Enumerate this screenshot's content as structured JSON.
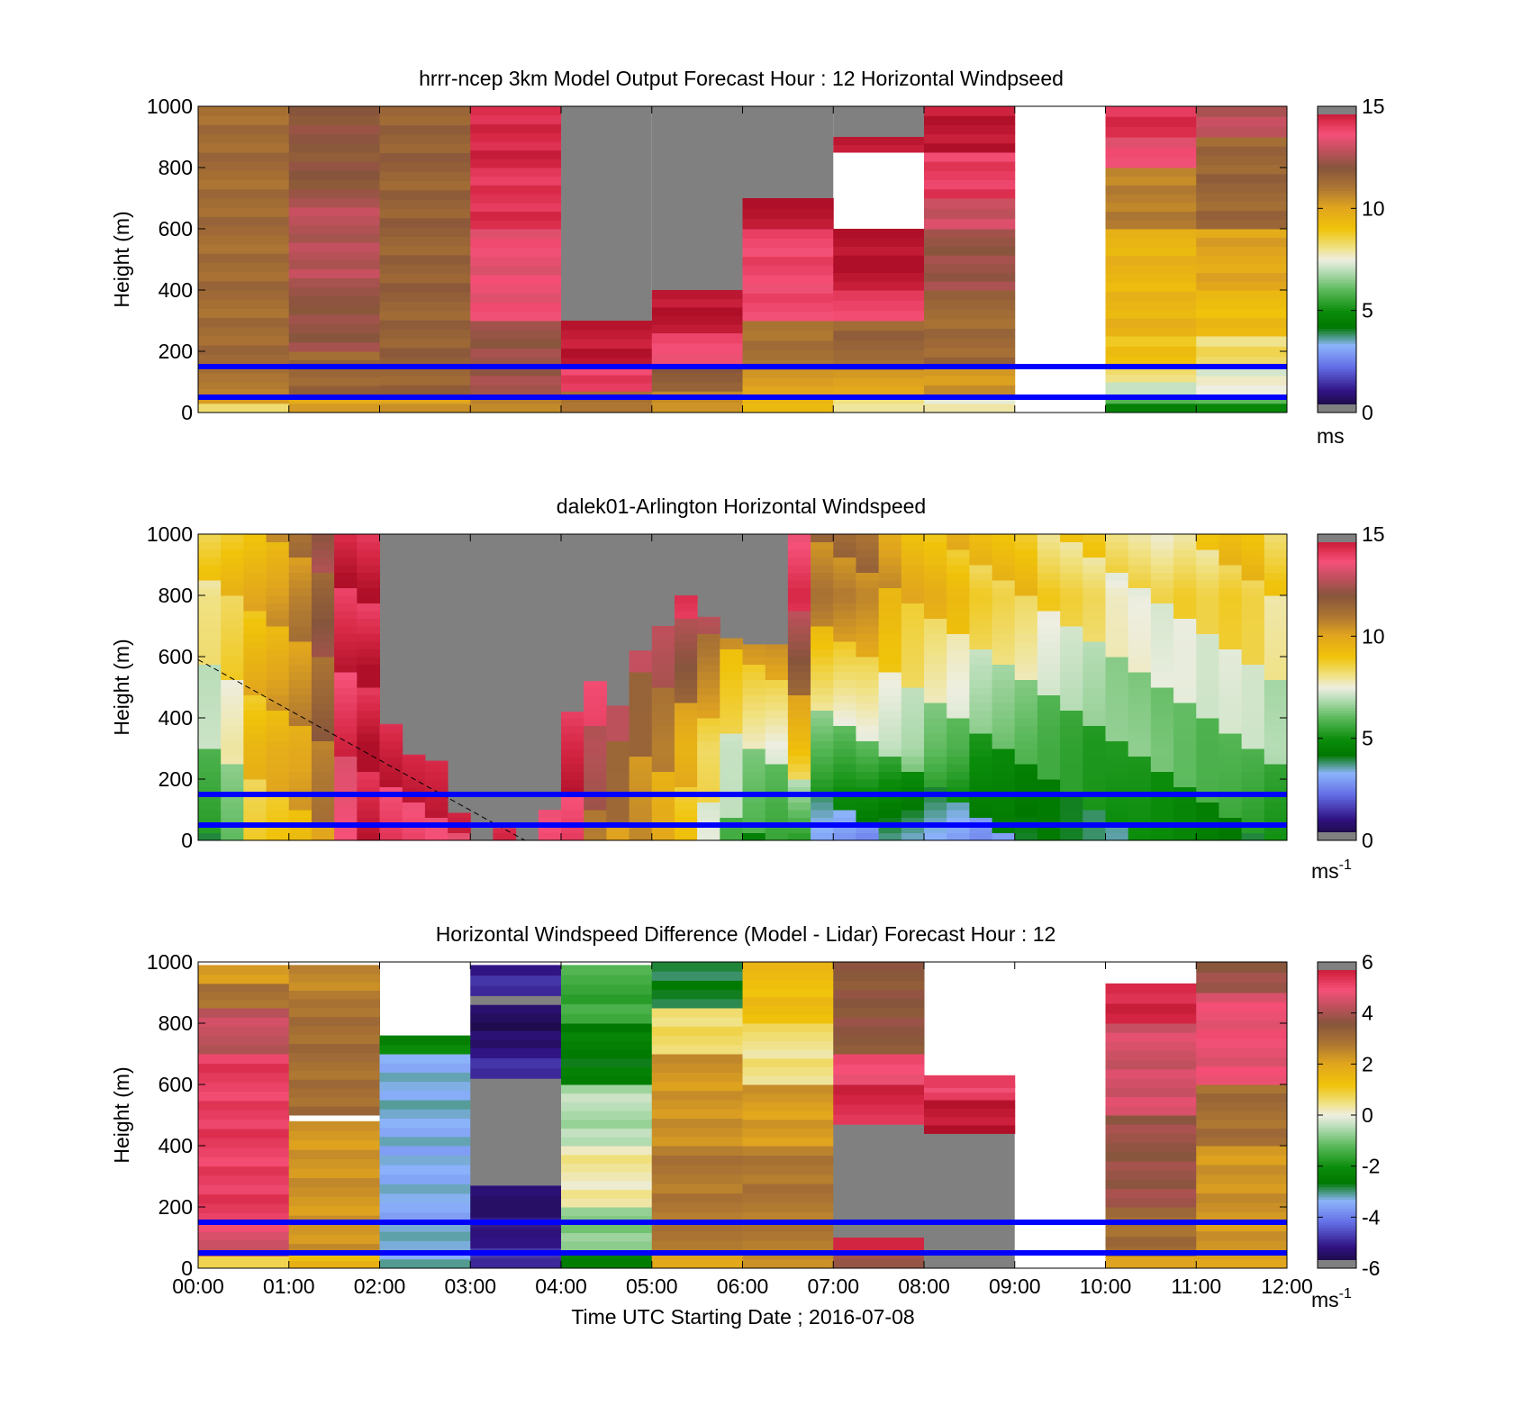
{
  "figure": {
    "xlabel": "Time UTC  Starting Date ; 2016-07-08",
    "x_ticks": [
      "00:00",
      "01:00",
      "02:00",
      "03:00",
      "04:00",
      "05:00",
      "06:00",
      "07:00",
      "08:00",
      "09:00",
      "10:00",
      "11:00",
      "12:00"
    ]
  },
  "chart_data": [
    {
      "type": "heatmap",
      "title": "hrrr-ncep 3km Model Output   Forecast Hour : 12 Horizontal Windpseed",
      "ylabel": "Height (m)",
      "ylim": [
        0,
        1000
      ],
      "y_ticks": [
        0,
        200,
        400,
        600,
        800,
        1000
      ],
      "colorbar": {
        "ticks": [
          0,
          5,
          10,
          15
        ],
        "label": "ms",
        "range": [
          0,
          15
        ]
      },
      "hlines": [
        50,
        150
      ],
      "x_hours": [
        0,
        1,
        2,
        3,
        4,
        5,
        6,
        7,
        8,
        9,
        10,
        11,
        12
      ],
      "columns": [
        {
          "hour": 0,
          "segments": [
            [
              0,
              30,
              8.5
            ],
            [
              30,
              55,
              10.5
            ],
            [
              55,
              100,
              11
            ],
            [
              100,
              1000,
              11.3
            ]
          ]
        },
        {
          "hour": 1,
          "segments": [
            [
              0,
              60,
              10
            ],
            [
              60,
              200,
              11.5
            ],
            [
              200,
              440,
              12.2
            ],
            [
              440,
              700,
              12.7
            ],
            [
              700,
              1000,
              12
            ]
          ]
        },
        {
          "hour": 2,
          "segments": [
            [
              0,
              60,
              10.3
            ],
            [
              60,
              1000,
              11.6
            ]
          ]
        },
        {
          "hour": 3,
          "segments": [
            [
              0,
              60,
              10.5
            ],
            [
              60,
              300,
              12.3
            ],
            [
              300,
              600,
              13.5
            ],
            [
              600,
              800,
              14.2
            ],
            [
              800,
              1000,
              14.4
            ]
          ]
        },
        {
          "hour": 4,
          "segments": [
            [
              0,
              70,
              11
            ],
            [
              70,
              150,
              14
            ],
            [
              150,
              300,
              14.8
            ]
          ]
        },
        {
          "hour": 5,
          "segments": [
            [
              0,
              70,
              10.5
            ],
            [
              70,
              160,
              11.7
            ],
            [
              160,
              260,
              13.6
            ],
            [
              260,
              400,
              14.8
            ]
          ]
        },
        {
          "hour": 6,
          "segments": [
            [
              0,
              60,
              9.5
            ],
            [
              60,
              140,
              10.2
            ],
            [
              140,
              300,
              11.2
            ],
            [
              300,
              600,
              13.8
            ],
            [
              600,
              700,
              14.9
            ]
          ]
        },
        {
          "hour": 7,
          "segments": [
            [
              0,
              60,
              8.2
            ],
            [
              60,
              140,
              10.2
            ],
            [
              140,
              300,
              11.5
            ],
            [
              300,
              400,
              14
            ],
            [
              400,
              600,
              14.9
            ],
            [
              850,
              900,
              14.9
            ]
          ]
        },
        {
          "hour": 8,
          "segments": [
            [
              0,
              60,
              7.6
            ],
            [
              60,
              150,
              10.3
            ],
            [
              150,
              400,
              11.4
            ],
            [
              400,
              600,
              12.3
            ],
            [
              600,
              700,
              13
            ],
            [
              700,
              850,
              14
            ],
            [
              850,
              1000,
              14.8
            ]
          ]
        },
        {
          "hour": 10,
          "segments": [
            [
              0,
              30,
              4.5
            ],
            [
              30,
              60,
              5.8
            ],
            [
              60,
              100,
              7
            ],
            [
              100,
              150,
              8
            ],
            [
              150,
              250,
              9
            ],
            [
              250,
              600,
              9.5
            ],
            [
              600,
              800,
              10.8
            ],
            [
              800,
              900,
              13.5
            ],
            [
              900,
              1000,
              14.2
            ]
          ]
        },
        {
          "hour": 11,
          "segments": [
            [
              0,
              30,
              4.8
            ],
            [
              30,
              60,
              6
            ],
            [
              60,
              150,
              7.5
            ],
            [
              150,
              250,
              8.3
            ],
            [
              250,
              400,
              9.3
            ],
            [
              400,
              600,
              10
            ],
            [
              600,
              900,
              11.5
            ],
            [
              900,
              1000,
              12.8
            ]
          ]
        }
      ],
      "missing_color": "#808080"
    },
    {
      "type": "heatmap",
      "title": "dalek01-Arlington  Horizontal Windspeed",
      "ylabel": "Height (m)",
      "ylim": [
        0,
        1000
      ],
      "y_ticks": [
        0,
        200,
        400,
        600,
        800,
        1000
      ],
      "colorbar": {
        "ticks": [
          0,
          5,
          10,
          15
        ],
        "label": "ms",
        "label_sup": "-1",
        "range": [
          0,
          15
        ]
      },
      "hlines": [
        50,
        150
      ],
      "dashed_line": [
        [
          0,
          590
        ],
        [
          3.6,
          0
        ]
      ],
      "time_step_hours": 0.25,
      "missing_color": "#808080",
      "columns": [
        {
          "t": 0.0,
          "top": 1000,
          "low": 4.5,
          "mid": 6.5,
          "high": 8.5
        },
        {
          "t": 0.25,
          "top": 1000,
          "low": 5.5,
          "mid": 7.5,
          "high": 9
        },
        {
          "t": 0.5,
          "top": 1000,
          "low": 8.5,
          "mid": 9.3,
          "high": 9.5
        },
        {
          "t": 0.75,
          "top": 1000,
          "low": 9,
          "mid": 9.8,
          "high": 10
        },
        {
          "t": 1.0,
          "top": 1000,
          "low": 9.5,
          "mid": 10.2,
          "high": 10.8
        },
        {
          "t": 1.25,
          "top": 1000,
          "low": 10.5,
          "mid": 11.3,
          "high": 12
        },
        {
          "t": 1.5,
          "top": 1000,
          "low": 13,
          "mid": 14,
          "high": 14.5
        },
        {
          "t": 1.75,
          "top": 1000,
          "low": 14.5,
          "mid": 14.8,
          "high": 14.5
        },
        {
          "t": 2.0,
          "top": 380,
          "low": 14,
          "mid": 14.5,
          "high": 14.8
        },
        {
          "t": 2.25,
          "top": 280,
          "low": 14,
          "mid": 14.5,
          "high": 14.8
        },
        {
          "t": 2.5,
          "top": 260,
          "low": 14,
          "mid": 14.7,
          "high": 14.9
        },
        {
          "t": 2.75,
          "top": 90,
          "low": 14,
          "mid": 14.5,
          "high": 14.9
        },
        {
          "t": 3.25,
          "top": 40,
          "low": 14,
          "mid": 14,
          "high": 14
        },
        {
          "t": 3.75,
          "top": 100,
          "low": 13.5,
          "mid": 14,
          "high": 14
        },
        {
          "t": 4.0,
          "top": 420,
          "low": 14,
          "mid": 14.5,
          "high": 14.9
        },
        {
          "t": 4.25,
          "top": 520,
          "low": 11,
          "mid": 13,
          "high": 14.7
        },
        {
          "t": 4.5,
          "top": 440,
          "low": 10.5,
          "mid": 12,
          "high": 14.5
        },
        {
          "t": 4.75,
          "top": 620,
          "low": 10,
          "mid": 11,
          "high": 13.5
        },
        {
          "t": 5.0,
          "top": 700,
          "low": 9.5,
          "mid": 10.5,
          "high": 13.8
        },
        {
          "t": 5.25,
          "top": 800,
          "low": 9,
          "mid": 9.5,
          "high": 14
        },
        {
          "t": 5.5,
          "top": 730,
          "low": 7.5,
          "mid": 8.5,
          "high": 13
        },
        {
          "t": 5.75,
          "top": 660,
          "low": 6,
          "mid": 7.5,
          "high": 11
        },
        {
          "t": 6.0,
          "top": 640,
          "low": 5,
          "mid": 7,
          "high": 11.5
        },
        {
          "t": 6.25,
          "top": 640,
          "low": 5,
          "mid": 7,
          "high": 12
        },
        {
          "t": 6.5,
          "top": 1000,
          "low": 5,
          "mid": 9,
          "high": 14
        },
        {
          "t": 6.75,
          "top": 1000,
          "low": 3,
          "mid": 6,
          "high": 11
        },
        {
          "t": 7.0,
          "top": 1000,
          "low": 3,
          "mid": 6,
          "high": 11
        },
        {
          "t": 7.25,
          "top": 1000,
          "low": 3,
          "mid": 6.5,
          "high": 11
        },
        {
          "t": 7.5,
          "top": 1000,
          "low": 3,
          "mid": 6.5,
          "high": 10
        },
        {
          "t": 7.75,
          "top": 1000,
          "low": 3,
          "mid": 6.5,
          "high": 9.5
        },
        {
          "t": 8.0,
          "top": 1000,
          "low": 3,
          "mid": 6,
          "high": 9.5
        },
        {
          "t": 8.25,
          "top": 1000,
          "low": 3,
          "mid": 6,
          "high": 9.3
        },
        {
          "t": 8.5,
          "top": 1000,
          "low": 3,
          "mid": 5.5,
          "high": 9
        },
        {
          "t": 8.75,
          "top": 1000,
          "low": 3.5,
          "mid": 5.5,
          "high": 9
        },
        {
          "t": 9.0,
          "top": 1000,
          "low": 3.5,
          "mid": 5.5,
          "high": 9
        },
        {
          "t": 9.25,
          "top": 1000,
          "low": 4,
          "mid": 5.5,
          "high": 8.5
        },
        {
          "t": 9.5,
          "top": 1000,
          "low": 4,
          "mid": 5.5,
          "high": 8.5
        },
        {
          "t": 9.75,
          "top": 1000,
          "low": 4,
          "mid": 5.5,
          "high": 8.5
        },
        {
          "t": 10.0,
          "top": 1000,
          "low": 4,
          "mid": 5.8,
          "high": 8
        },
        {
          "t": 10.25,
          "top": 1000,
          "low": 4.3,
          "mid": 6,
          "high": 8
        },
        {
          "t": 10.5,
          "top": 1000,
          "low": 4.5,
          "mid": 6,
          "high": 8
        },
        {
          "t": 10.75,
          "top": 1000,
          "low": 4.5,
          "mid": 6,
          "high": 8.5
        },
        {
          "t": 11.0,
          "top": 1000,
          "low": 4.5,
          "mid": 6,
          "high": 8.5
        },
        {
          "t": 11.25,
          "top": 1000,
          "low": 4.5,
          "mid": 6.3,
          "high": 9
        },
        {
          "t": 11.5,
          "top": 1000,
          "low": 4.5,
          "mid": 6.5,
          "high": 9
        },
        {
          "t": 11.75,
          "top": 1000,
          "low": 4.5,
          "mid": 6.5,
          "high": 8.5
        }
      ]
    },
    {
      "type": "heatmap",
      "title": "Horizontal Windspeed Difference (Model - Lidar) Forecast Hour : 12",
      "ylabel": "Height (m)",
      "ylim": [
        0,
        1000
      ],
      "y_ticks": [
        0,
        200,
        400,
        600,
        800,
        1000
      ],
      "colorbar": {
        "ticks": [
          -6,
          -4,
          -2,
          0,
          2,
          4,
          6
        ],
        "label": "ms",
        "label_sup": "-1",
        "range": [
          -6,
          6
        ]
      },
      "hlines": [
        50,
        150
      ],
      "missing_color": "#808080",
      "columns": [
        {
          "hour": 0,
          "segments": [
            [
              0,
              40,
              1
            ],
            [
              40,
              120,
              4.5
            ],
            [
              120,
              700,
              5.2
            ],
            [
              700,
              850,
              4.3
            ],
            [
              850,
              930,
              3
            ],
            [
              930,
              990,
              2.3
            ]
          ]
        },
        {
          "hour": 1,
          "segments": [
            [
              0,
              50,
              1.5
            ],
            [
              50,
              480,
              2.3
            ],
            [
              500,
              880,
              3
            ],
            [
              880,
              990,
              2.5
            ]
          ]
        },
        {
          "hour": 2,
          "segments": [
            [
              0,
              120,
              -3.2
            ],
            [
              120,
              400,
              -3.4
            ],
            [
              400,
              700,
              -3.3
            ],
            [
              700,
              760,
              -2.2
            ]
          ]
        },
        {
          "hour": 3,
          "segments": [
            [
              0,
              100,
              -5
            ],
            [
              100,
              200,
              -5.3
            ],
            [
              200,
              270,
              -5.5
            ],
            [
              620,
              720,
              -5
            ],
            [
              720,
              860,
              -5.5
            ],
            [
              890,
              990,
              -5
            ]
          ]
        },
        {
          "hour": 4,
          "segments": [
            [
              0,
              60,
              -2.5
            ],
            [
              60,
              200,
              -0.8
            ],
            [
              200,
              400,
              0.3
            ],
            [
              400,
              600,
              -0.5
            ],
            [
              600,
              800,
              -2.5
            ],
            [
              800,
              990,
              -1.5
            ]
          ]
        },
        {
          "hour": 5,
          "segments": [
            [
              0,
              60,
              2
            ],
            [
              60,
              400,
              2.8
            ],
            [
              400,
              700,
              2.3
            ],
            [
              700,
              850,
              0.6
            ],
            [
              850,
              1000,
              -2.8
            ]
          ]
        },
        {
          "hour": 6,
          "segments": [
            [
              0,
              60,
              2.5
            ],
            [
              60,
              400,
              2.8
            ],
            [
              400,
              600,
              2.2
            ],
            [
              600,
              800,
              0.5
            ],
            [
              800,
              1000,
              1.4
            ]
          ]
        },
        {
          "hour": 7,
          "segments": [
            [
              0,
              60,
              4
            ],
            [
              60,
              100,
              5.8
            ],
            [
              470,
              600,
              5.5
            ],
            [
              600,
              700,
              5
            ],
            [
              700,
              1000,
              3.6
            ]
          ]
        },
        {
          "hour": 8,
          "segments": [
            [
              440,
              550,
              5.8
            ],
            [
              550,
              600,
              5
            ],
            [
              590,
              630,
              5
            ]
          ]
        },
        {
          "hour": 10,
          "segments": [
            [
              0,
              40,
              2
            ],
            [
              40,
              200,
              3
            ],
            [
              200,
              500,
              3.8
            ],
            [
              500,
              800,
              4.5
            ],
            [
              800,
              930,
              5.5
            ]
          ]
        },
        {
          "hour": 11,
          "segments": [
            [
              0,
              60,
              2
            ],
            [
              60,
              400,
              2.3
            ],
            [
              400,
              600,
              3
            ],
            [
              600,
              900,
              4.8
            ],
            [
              900,
              1000,
              3.8
            ]
          ]
        }
      ]
    }
  ]
}
